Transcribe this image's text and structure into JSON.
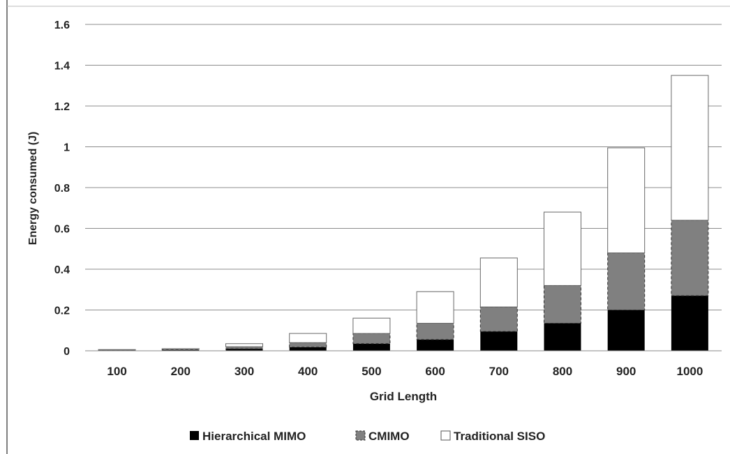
{
  "chart_data": {
    "type": "bar",
    "stacked": true,
    "title": "",
    "xlabel": "Grid Length",
    "ylabel": "Energy consumed (J)",
    "ylim": [
      0,
      1.6
    ],
    "yticks": [
      "0",
      "0.2",
      "0.4",
      "0.6",
      "0.8",
      "1",
      "1.2",
      "1.4",
      "1.6"
    ],
    "categories": [
      "100",
      "200",
      "300",
      "400",
      "500",
      "600",
      "700",
      "800",
      "900",
      "1000"
    ],
    "series": [
      {
        "name": "Hierarchical MIMO",
        "color": "#000000",
        "values": [
          0.002,
          0.004,
          0.01,
          0.018,
          0.035,
          0.055,
          0.095,
          0.135,
          0.2,
          0.27
        ]
      },
      {
        "name": "CMIMO",
        "color": "#808080",
        "values": [
          0.002,
          0.004,
          0.01,
          0.022,
          0.05,
          0.08,
          0.12,
          0.185,
          0.28,
          0.37
        ]
      },
      {
        "name": "Traditional SISO",
        "color": "#ffffff",
        "values": [
          0.002,
          0.002,
          0.015,
          0.045,
          0.075,
          0.155,
          0.24,
          0.36,
          0.515,
          0.71
        ]
      }
    ],
    "grid": true,
    "legend_position": "bottom"
  }
}
